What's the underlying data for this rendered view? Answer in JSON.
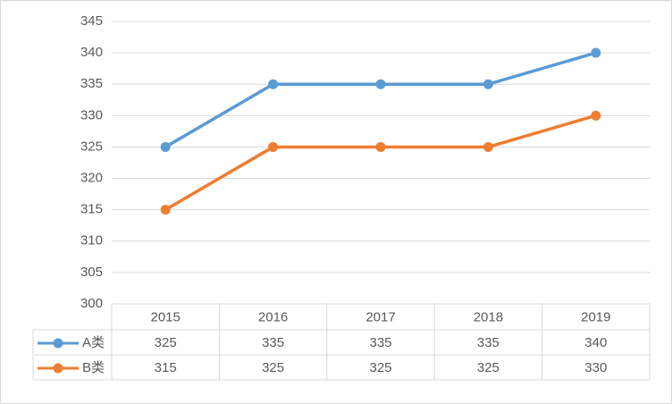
{
  "chart_data": {
    "type": "line",
    "categories": [
      "2015",
      "2016",
      "2017",
      "2018",
      "2019"
    ],
    "series": [
      {
        "name": "A类",
        "color": "#5b9bd5",
        "values": [
          325,
          335,
          335,
          335,
          340
        ]
      },
      {
        "name": "B类",
        "color": "#ed7d31",
        "values": [
          315,
          325,
          325,
          325,
          330
        ]
      }
    ],
    "ylim": [
      300,
      345
    ],
    "yticks": [
      300,
      305,
      310,
      315,
      320,
      325,
      330,
      335,
      340,
      345
    ],
    "grid": true,
    "data_table": true
  }
}
